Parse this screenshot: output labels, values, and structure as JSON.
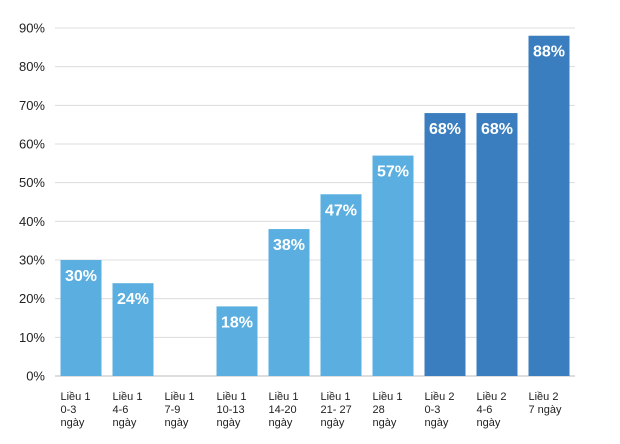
{
  "chart_data": {
    "type": "bar",
    "categories": [
      [
        "Liều 1",
        "0-3",
        "ngày"
      ],
      [
        "Liều 1",
        "4-6",
        "ngày"
      ],
      [
        "Liều 1",
        "7-9",
        "ngày"
      ],
      [
        "Liều 1",
        "10-13",
        "ngày"
      ],
      [
        "Liều 1",
        "14-20",
        "ngày"
      ],
      [
        "Liều 1",
        "21- 27",
        "ngày"
      ],
      [
        "Liều 1",
        "28",
        "ngày"
      ],
      [
        "Liều 2",
        "0-3",
        "ngày"
      ],
      [
        "Liều 2",
        "4-6",
        "ngày"
      ],
      [
        "Liều 2",
        "7 ngày"
      ]
    ],
    "values": [
      30,
      24,
      null,
      18,
      38,
      47,
      57,
      68,
      68,
      88
    ],
    "value_labels": [
      "30%",
      "24%",
      "",
      "18%",
      "38%",
      "47%",
      "57%",
      "68%",
      "68%",
      "88%"
    ],
    "yticks": [
      "0%",
      "10%",
      "20%",
      "30%",
      "40%",
      "50%",
      "60%",
      "70%",
      "80%",
      "90%"
    ],
    "ylim": [
      0,
      90
    ],
    "grid": true,
    "colors": {
      "dose1": "#5aafe0",
      "dose2": "#3a7ebf",
      "grid": "#dcdcdc",
      "axis": "#bbbbbb"
    },
    "bar_groups": [
      "dose1",
      "dose1",
      "dose1",
      "dose1",
      "dose1",
      "dose1",
      "dose1",
      "dose2",
      "dose2",
      "dose2"
    ],
    "title": "",
    "xlabel": "",
    "ylabel": ""
  }
}
